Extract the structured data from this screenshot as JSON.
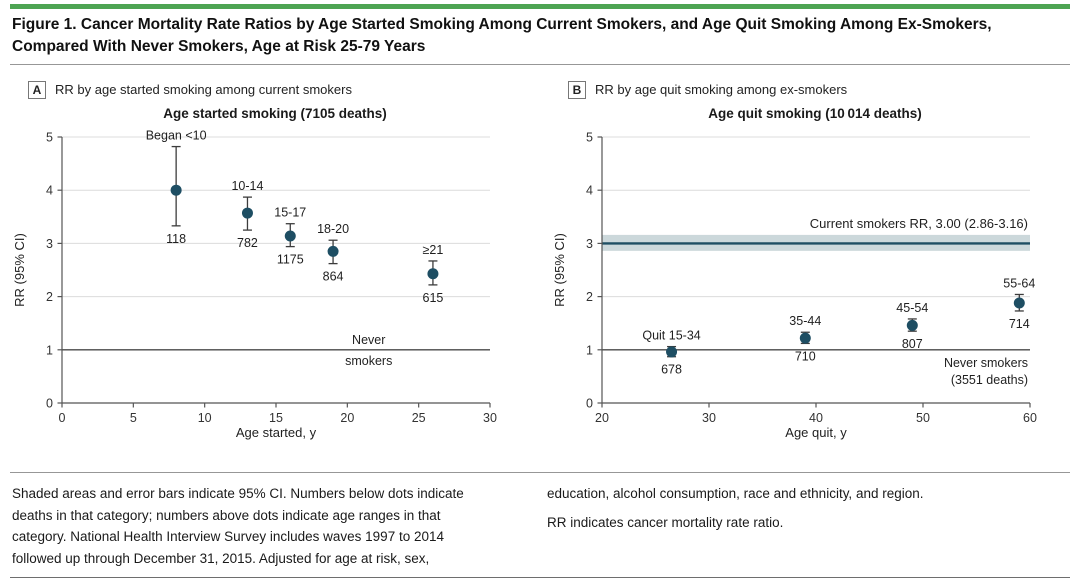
{
  "colors": {
    "accent_green": "#4da453",
    "dot": "#1e4e63",
    "error_bar": "#3c3c3c",
    "grid": "#dcdcdc",
    "ref_line": "#4a4a4a",
    "axis": "#555555",
    "band_fill": "#ccd8db",
    "band_line": "#1e4e63",
    "text": "#1f1f1f"
  },
  "header": {
    "title_line1": "Figure 1. Cancer Mortality Rate Ratios by Age Started Smoking Among Current Smokers, and Age Quit Smoking Among Ex-Smokers,",
    "title_line2": "Compared With Never Smokers, Age at Risk 25-79 Years"
  },
  "footnote": {
    "left": "Shaded areas and error bars indicate 95% CI. Numbers below dots indicate deaths in that category; numbers above dots indicate age ranges in that category. National Health Interview Survey includes waves 1997 to 2014 followed up through December 31, 2015. Adjusted for age at risk, sex,",
    "right_1": "education, alcohol consumption, race and ethnicity, and region.",
    "right_2": "RR indicates cancer mortality rate ratio."
  },
  "chart_data": [
    {
      "type": "scatter",
      "panel_label": "A",
      "panel_heading": "RR by age started smoking among current smokers",
      "title": "Age started smoking (7105 deaths)",
      "xlabel": "Age started, y",
      "ylabel": "RR (95% CI)",
      "xlim": [
        0,
        30
      ],
      "xticks": [
        0,
        5,
        10,
        15,
        20,
        25,
        30
      ],
      "ylim": [
        0,
        5
      ],
      "yticks": [
        0,
        1,
        2,
        3,
        4,
        5
      ],
      "grid": "horizontal",
      "ref_line_y": 1,
      "ref_label": {
        "lines": [
          "Never",
          "smokers"
        ],
        "x": 21.5,
        "anchor": "middle",
        "position": "straddle"
      },
      "points": [
        {
          "x": 8,
          "age_label": "Began <10",
          "rr": 4.0,
          "ci_lo": 3.33,
          "ci_hi": 4.82,
          "deaths": 118
        },
        {
          "x": 13,
          "age_label": "10-14",
          "rr": 3.57,
          "ci_lo": 3.25,
          "ci_hi": 3.87,
          "deaths": 782
        },
        {
          "x": 16,
          "age_label": "15-17",
          "rr": 3.14,
          "ci_lo": 2.94,
          "ci_hi": 3.37,
          "deaths": 1175
        },
        {
          "x": 19,
          "age_label": "18-20",
          "rr": 2.85,
          "ci_lo": 2.62,
          "ci_hi": 3.06,
          "deaths": 864
        },
        {
          "x": 26,
          "age_label": "≥21",
          "rr": 2.43,
          "ci_lo": 2.22,
          "ci_hi": 2.67,
          "deaths": 615
        }
      ]
    },
    {
      "type": "scatter",
      "panel_label": "B",
      "panel_heading": "RR by age quit smoking among ex-smokers",
      "title": "Age quit smoking (10 014 deaths)",
      "xlabel": "Age quit, y",
      "ylabel": "RR (95% CI)",
      "xlim": [
        20,
        60
      ],
      "xticks": [
        20,
        30,
        40,
        50,
        60
      ],
      "ylim": [
        0,
        5
      ],
      "yticks": [
        0,
        1,
        2,
        3,
        4,
        5
      ],
      "grid": "horizontal",
      "ref_line_y": 1,
      "ref_label": {
        "lines": [
          "Never smokers",
          "(3551 deaths)"
        ],
        "anchor": "end",
        "position": "below"
      },
      "band": {
        "label": "Current smokers RR, 3.00 (2.86-3.16)",
        "center": 3.0,
        "lo": 2.86,
        "hi": 3.16
      },
      "points": [
        {
          "x": 26.5,
          "age_label": "Quit 15-34",
          "rr": 0.96,
          "ci_lo": 0.87,
          "ci_hi": 1.06,
          "deaths": 678
        },
        {
          "x": 39,
          "age_label": "35-44",
          "rr": 1.22,
          "ci_lo": 1.12,
          "ci_hi": 1.33,
          "deaths": 710
        },
        {
          "x": 49,
          "age_label": "45-54",
          "rr": 1.46,
          "ci_lo": 1.35,
          "ci_hi": 1.58,
          "deaths": 807
        },
        {
          "x": 59,
          "age_label": "55-64",
          "rr": 1.88,
          "ci_lo": 1.73,
          "ci_hi": 2.04,
          "deaths": 714
        }
      ]
    }
  ]
}
